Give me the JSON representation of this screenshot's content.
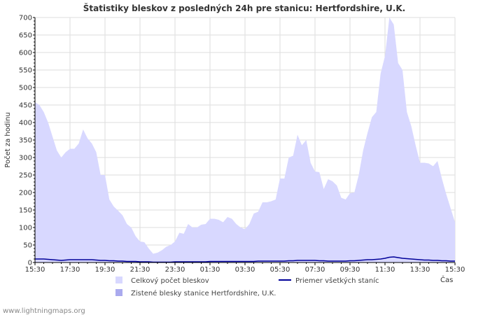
{
  "chart_data": {
    "type": "area",
    "title": "Štatistiky bleskov z posledných 24h pre stanicu: Hertfordshire, U.K.",
    "ylabel": "Počet za hodinu",
    "xlabel": "Čas",
    "ylim": [
      0,
      700
    ],
    "y_ticks": [
      "0",
      "50",
      "100",
      "150",
      "200",
      "250",
      "300",
      "350",
      "400",
      "450",
      "500",
      "550",
      "600",
      "650",
      "700"
    ],
    "x_ticks": [
      "15:30",
      "17:30",
      "19:30",
      "21:30",
      "23:30",
      "01:30",
      "03:30",
      "05:30",
      "07:30",
      "09:30",
      "11:30",
      "13:30",
      "15:30"
    ],
    "grid": true,
    "series": [
      {
        "name": "Celkový počet bleskov",
        "kind": "area",
        "color": "#d8d8ff",
        "values": [
          458,
          450,
          430,
          400,
          360,
          320,
          300,
          315,
          325,
          325,
          340,
          380,
          355,
          340,
          315,
          250,
          250,
          180,
          160,
          148,
          135,
          110,
          100,
          75,
          60,
          58,
          40,
          25,
          28,
          35,
          45,
          50,
          60,
          85,
          82,
          110,
          100,
          100,
          108,
          110,
          125,
          125,
          122,
          115,
          130,
          125,
          110,
          100,
          95,
          110,
          140,
          145,
          172,
          172,
          175,
          180,
          240,
          240,
          300,
          305,
          365,
          335,
          350,
          285,
          260,
          258,
          210,
          238,
          232,
          220,
          185,
          180,
          198,
          200,
          250,
          320,
          370,
          415,
          430,
          540,
          590,
          700,
          680,
          570,
          550,
          430,
          390,
          335,
          285,
          285,
          283,
          275,
          290,
          240,
          195,
          155,
          115
        ]
      },
      {
        "name": "Zistené blesky stanice Hertfordshire, U.K.",
        "kind": "area",
        "color": "#aaaaee",
        "values": [
          0,
          0,
          0,
          0,
          0,
          0,
          0,
          0,
          0,
          0,
          0,
          0,
          0,
          0,
          0,
          0,
          0,
          0,
          0,
          0,
          0,
          0,
          0,
          0,
          0,
          0,
          0,
          0,
          0,
          0,
          0,
          0,
          0,
          0,
          0,
          0,
          0,
          0,
          0,
          0,
          0,
          0,
          0,
          0,
          0,
          0,
          0,
          0,
          0,
          0,
          0,
          0,
          0,
          0,
          0,
          0,
          0,
          0,
          0,
          0,
          0,
          0,
          0,
          0,
          0,
          0,
          0,
          0,
          0,
          0,
          0,
          0,
          0,
          0,
          0,
          0,
          0,
          0,
          0,
          0,
          0,
          0,
          0,
          0,
          0,
          0,
          0,
          0,
          0,
          0,
          0,
          0,
          0,
          0,
          0,
          0,
          0
        ]
      },
      {
        "name": "Priemer všetkých staníc",
        "kind": "line",
        "color": "#000099",
        "values": [
          10,
          10,
          10,
          9,
          8,
          7,
          6,
          7,
          8,
          8,
          8,
          8,
          8,
          8,
          7,
          6,
          6,
          5,
          5,
          4,
          4,
          3,
          3,
          3,
          2,
          2,
          2,
          1,
          1,
          1,
          1,
          1,
          2,
          2,
          2,
          2,
          2,
          2,
          2,
          2,
          3,
          3,
          3,
          3,
          3,
          3,
          3,
          3,
          3,
          3,
          3,
          4,
          4,
          4,
          4,
          4,
          4,
          4,
          5,
          5,
          6,
          6,
          6,
          6,
          6,
          5,
          5,
          4,
          4,
          4,
          4,
          4,
          5,
          5,
          6,
          7,
          8,
          8,
          9,
          10,
          12,
          15,
          16,
          14,
          12,
          11,
          10,
          9,
          8,
          7,
          7,
          6,
          6,
          5,
          5,
          4,
          4
        ]
      }
    ],
    "legend": {
      "position": "bottom",
      "items": [
        {
          "label": "Celkový počet bleskov",
          "swatch": "box",
          "color": "#d8d8ff"
        },
        {
          "label": "Priemer všetkých staníc",
          "swatch": "line",
          "color": "#000099"
        },
        {
          "label": "Zistené blesky stanice Hertfordshire, U.K.",
          "swatch": "box",
          "color": "#aaaaee"
        }
      ]
    }
  },
  "footer": {
    "source": "www.lightningmaps.org"
  }
}
